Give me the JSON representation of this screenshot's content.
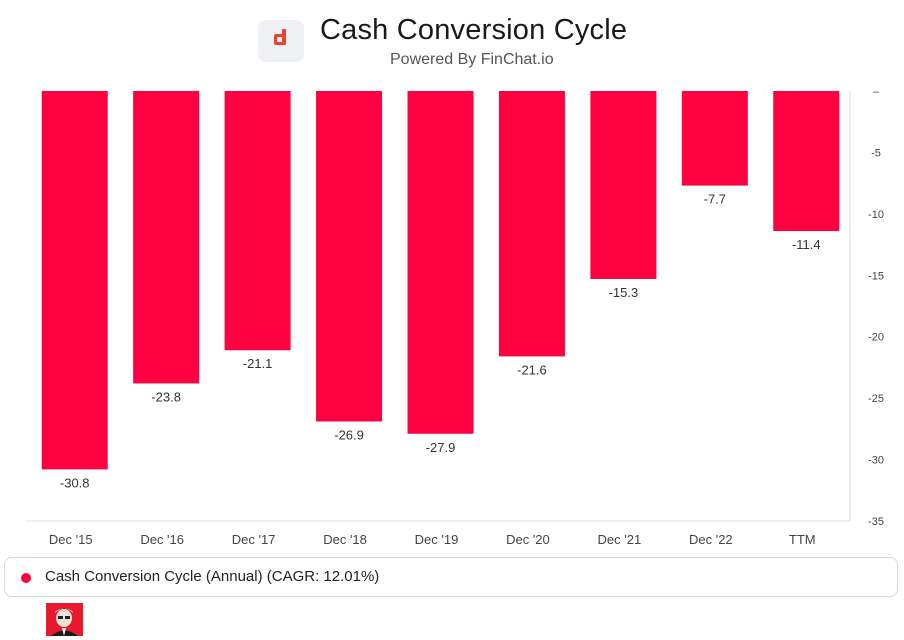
{
  "header": {
    "title": "Cash Conversion Cycle",
    "subtitle": "Powered By FinChat.io",
    "logo_letter": "d"
  },
  "colors": {
    "bar": "#ff0040",
    "logo_icon": "#e8442c",
    "axis": "#dddddd",
    "tick_text": "#444444"
  },
  "chart_data": {
    "type": "bar",
    "title": "Cash Conversion Cycle",
    "categories": [
      "Dec '15",
      "Dec '16",
      "Dec '17",
      "Dec '18",
      "Dec '19",
      "Dec '20",
      "Dec '21",
      "Dec '22",
      "TTM"
    ],
    "series": [
      {
        "name": "Cash Conversion Cycle (Annual) (CAGR: 12.01%)",
        "values": [
          -30.8,
          -23.8,
          -21.1,
          -26.9,
          -27.9,
          -21.6,
          -15.3,
          -7.7,
          -11.4
        ]
      }
    ],
    "value_labels": [
      "-30.8",
      "-23.8",
      "-21.1",
      "-26.9",
      "-27.9",
      "-21.6",
      "-15.3",
      "-7.7",
      "-11.4"
    ],
    "ylim": [
      -35,
      0
    ],
    "yticks": [
      0,
      -5,
      -10,
      -15,
      -20,
      -25,
      -30,
      -35
    ],
    "ytick_labels": [
      "–",
      "-5",
      "-10",
      "-15",
      "-20",
      "-25",
      "-30",
      "-35"
    ],
    "y_axis_side": "right",
    "grid": false,
    "legend_position": "bottom"
  },
  "legend": {
    "label": "Cash Conversion Cycle (Annual) (CAGR: 12.01%)"
  }
}
